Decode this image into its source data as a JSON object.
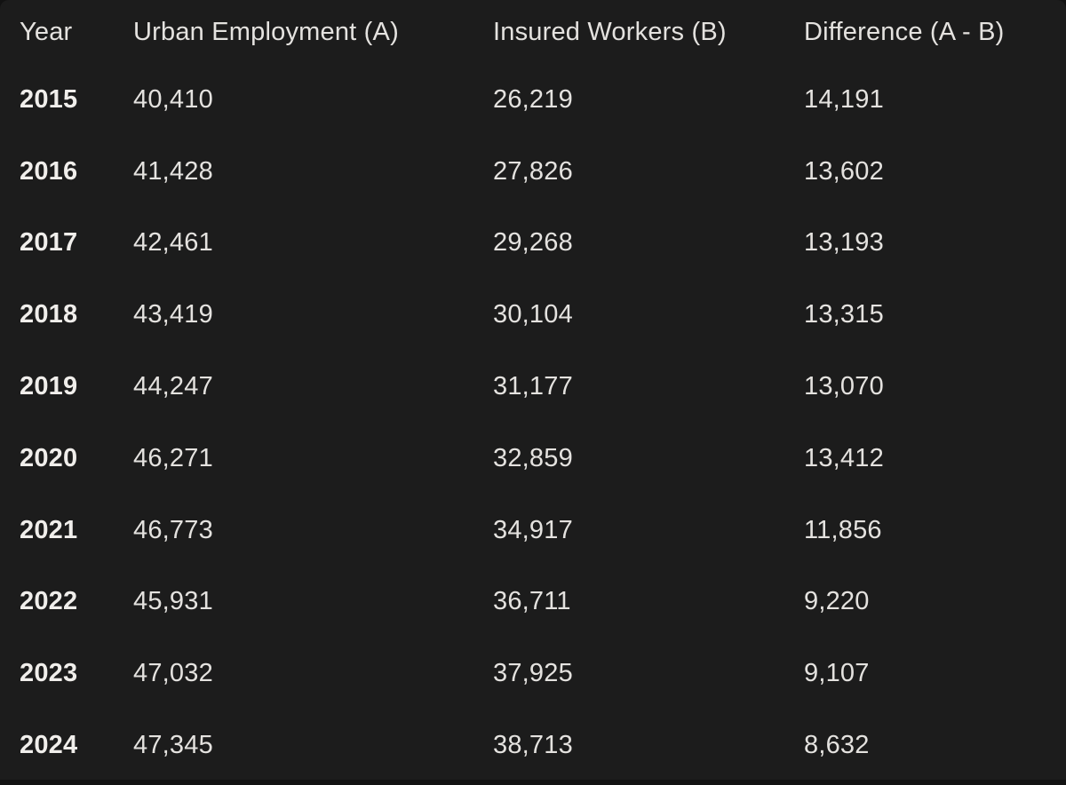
{
  "colors": {
    "card_background": "#1C1C1C",
    "page_background": "#121212",
    "body_text": "#E4E2DF",
    "year_text": "#F0EEEB"
  },
  "table": {
    "columns": [
      "Year",
      "Urban Employment (A)",
      "Insured Workers (B)",
      "Difference (A - B)"
    ],
    "rows": [
      {
        "year": "2015",
        "urban": "40,410",
        "insured": "26,219",
        "difference": "14,191"
      },
      {
        "year": "2016",
        "urban": "41,428",
        "insured": "27,826",
        "difference": "13,602"
      },
      {
        "year": "2017",
        "urban": "42,461",
        "insured": "29,268",
        "difference": "13,193"
      },
      {
        "year": "2018",
        "urban": "43,419",
        "insured": "30,104",
        "difference": "13,315"
      },
      {
        "year": "2019",
        "urban": "44,247",
        "insured": "31,177",
        "difference": "13,070"
      },
      {
        "year": "2020",
        "urban": "46,271",
        "insured": "32,859",
        "difference": "13,412"
      },
      {
        "year": "2021",
        "urban": "46,773",
        "insured": "34,917",
        "difference": "11,856"
      },
      {
        "year": "2022",
        "urban": "45,931",
        "insured": "36,711",
        "difference": "9,220"
      },
      {
        "year": "2023",
        "urban": "47,032",
        "insured": "37,925",
        "difference": "9,107"
      },
      {
        "year": "2024",
        "urban": "47,345",
        "insured": "38,713",
        "difference": "8,632"
      }
    ]
  },
  "chart_data": {
    "type": "table",
    "title": "",
    "columns": [
      "Year",
      "Urban Employment (A)",
      "Insured Workers (B)",
      "Difference (A - B)"
    ],
    "x": [
      2015,
      2016,
      2017,
      2018,
      2019,
      2020,
      2021,
      2022,
      2023,
      2024
    ],
    "series": [
      {
        "name": "Urban Employment (A)",
        "values": [
          40410,
          41428,
          42461,
          43419,
          44247,
          46271,
          46773,
          45931,
          47032,
          47345
        ]
      },
      {
        "name": "Insured Workers (B)",
        "values": [
          26219,
          27826,
          29268,
          30104,
          31177,
          32859,
          34917,
          36711,
          37925,
          38713
        ]
      },
      {
        "name": "Difference (A - B)",
        "values": [
          14191,
          13602,
          13193,
          13315,
          13070,
          13412,
          11856,
          9220,
          9107,
          8632
        ]
      }
    ]
  }
}
